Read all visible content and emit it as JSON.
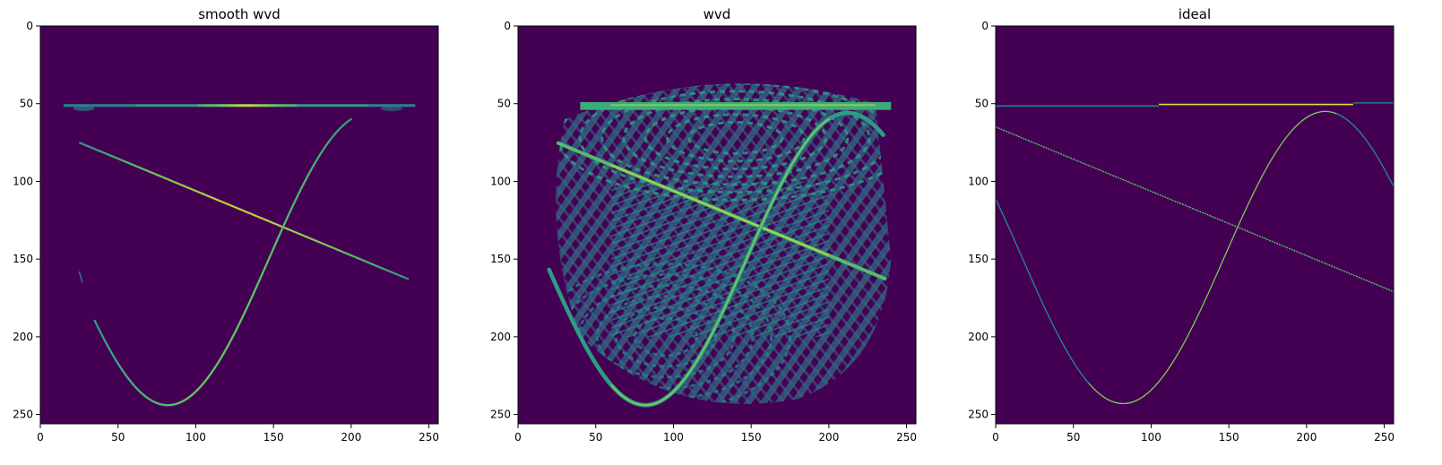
{
  "chart_data": [
    {
      "type": "heatmap",
      "title": "smooth wvd",
      "xlabel": "",
      "ylabel": "",
      "xlim": [
        0,
        256
      ],
      "ylim": [
        256,
        0
      ],
      "x_ticks": [
        0,
        50,
        100,
        150,
        200,
        250
      ],
      "y_ticks": [
        0,
        50,
        100,
        150,
        200,
        250
      ],
      "grid": false,
      "colormap": "viridis",
      "background_color": "#440154",
      "features": [
        {
          "kind": "horizontal-line",
          "y": 51,
          "x_range": [
            15,
            240
          ],
          "peak_x": [
            110,
            160
          ],
          "intensity": 0.9,
          "width": 2.5
        },
        {
          "kind": "line",
          "from": [
            25,
            75
          ],
          "to": [
            237,
            163
          ],
          "intensity": 0.8,
          "width": 2
        },
        {
          "kind": "sine-curve",
          "description_points": [
            [
              35,
              185
            ],
            [
              82,
              244
            ],
            [
              150,
              110
            ],
            [
              198,
              60
            ]
          ],
          "intensity": 0.75,
          "width": 2
        }
      ]
    },
    {
      "type": "heatmap",
      "title": "wvd",
      "xlabel": "",
      "ylabel": "",
      "xlim": [
        0,
        256
      ],
      "ylim": [
        256,
        0
      ],
      "x_ticks": [
        0,
        50,
        100,
        150,
        200,
        250
      ],
      "y_ticks": [
        0,
        50,
        100,
        150,
        200,
        250
      ],
      "grid": false,
      "colormap": "viridis",
      "background_color": "#440154",
      "features": [
        {
          "kind": "horizontal-line",
          "y": 51,
          "x_range": [
            40,
            240
          ],
          "intensity": 0.75,
          "width": 5
        },
        {
          "kind": "line",
          "from": [
            25,
            75
          ],
          "to": [
            237,
            163
          ],
          "intensity": 0.8,
          "width": 4
        },
        {
          "kind": "sine-curve",
          "intensity": 0.7,
          "width": 4
        },
        {
          "kind": "interference-pattern",
          "x_range": [
            20,
            240
          ],
          "y_range": [
            25,
            245
          ],
          "intensity": 0.5
        }
      ]
    },
    {
      "type": "heatmap",
      "title": "ideal",
      "xlabel": "",
      "ylabel": "",
      "xlim": [
        0,
        256
      ],
      "ylim": [
        256,
        0
      ],
      "x_ticks": [
        0,
        50,
        100,
        150,
        200,
        250
      ],
      "y_ticks": [
        0,
        50,
        100,
        150,
        200,
        250
      ],
      "grid": false,
      "colormap": "viridis",
      "background_color": "#440154",
      "features": [
        {
          "kind": "horizontal-line",
          "y": 51,
          "x_range": [
            0,
            256
          ],
          "peak_x": [
            105,
            230
          ],
          "intensity": 0.85,
          "width": 1
        },
        {
          "kind": "line",
          "from": [
            0,
            65
          ],
          "to": [
            256,
            171
          ],
          "intensity": 0.8,
          "width": 1
        },
        {
          "kind": "sine-curve",
          "description_points": [
            [
              0,
              105
            ],
            [
              82,
              243
            ],
            [
              212,
              55
            ],
            [
              256,
              105
            ]
          ],
          "intensity": 0.8,
          "width": 1
        }
      ]
    }
  ]
}
